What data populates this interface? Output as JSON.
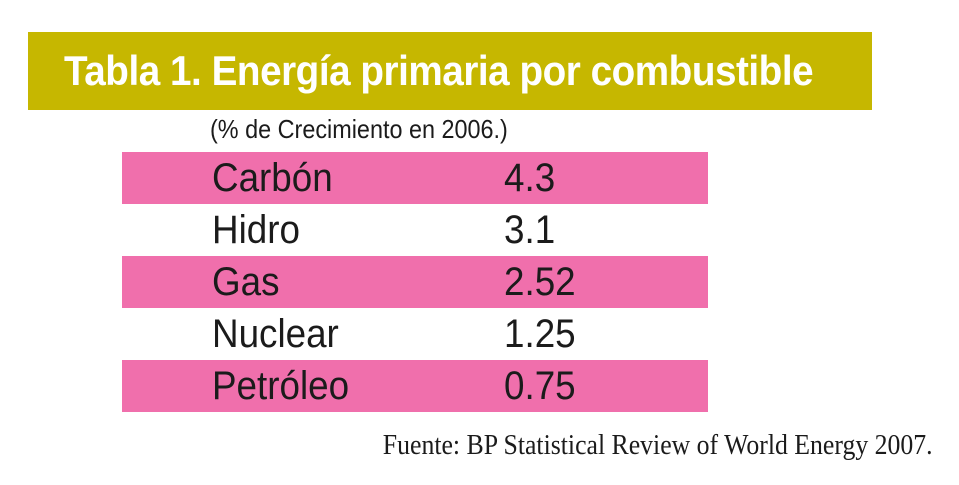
{
  "title": "Tabla 1. Energía primaria por combustible",
  "subtitle": "(% de Crecimiento en 2006.)",
  "rows": [
    {
      "name": "Carbón",
      "value": "4.3"
    },
    {
      "name": "Hidro",
      "value": "3.1"
    },
    {
      "name": "Gas",
      "value": "2.52"
    },
    {
      "name": "Nuclear",
      "value": "1.25"
    },
    {
      "name": "Petróleo",
      "value": "0.75"
    }
  ],
  "source": "Fuente: BP Statistical Review of World Energy 2007.",
  "colors": {
    "title_bar": "#c6b700",
    "title_text": "#ffffff",
    "row_highlight": "#f06fac",
    "text": "#1b1b1b"
  }
}
